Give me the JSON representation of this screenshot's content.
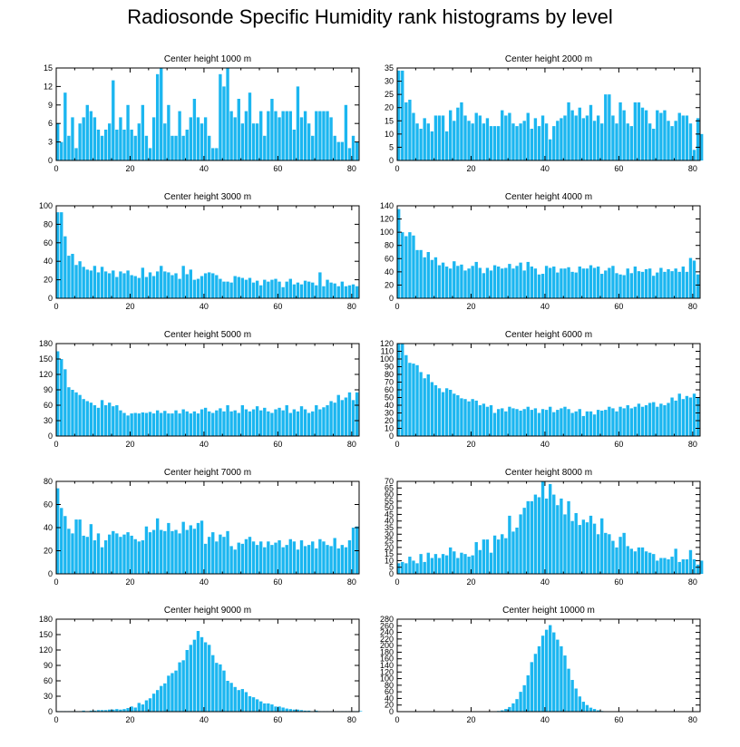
{
  "title": "Radiosonde Specific Humidity rank histograms by level",
  "colors": {
    "bar": "#1bb6f0",
    "axis": "#000000",
    "background": "#ffffff"
  },
  "chart_data": [
    {
      "type": "bar",
      "title": "Center height 1000 m",
      "xlim": [
        0,
        82
      ],
      "ylim": [
        0,
        15
      ],
      "xticks": [
        0,
        20,
        40,
        60,
        80
      ],
      "yticks": [
        0,
        3,
        6,
        9,
        12,
        15
      ],
      "values": [
        6,
        3,
        11,
        4,
        7,
        2,
        6,
        7,
        9,
        8,
        7,
        5,
        4,
        5,
        6,
        13,
        5,
        7,
        5,
        9,
        5,
        4,
        6,
        9,
        4,
        2,
        7,
        14,
        15,
        6,
        9,
        4,
        4,
        8,
        4,
        5,
        7,
        10,
        7,
        6,
        7,
        4,
        2,
        2,
        14,
        12,
        15,
        8,
        7,
        10,
        6,
        8,
        11,
        6,
        6,
        8,
        4,
        8,
        10,
        8,
        7,
        8,
        8,
        8,
        5,
        12,
        7,
        8,
        6,
        4,
        8,
        8,
        8,
        8,
        7,
        4,
        3,
        3,
        9,
        2,
        4,
        3
      ]
    },
    {
      "type": "bar",
      "title": "Center height 2000 m",
      "xlim": [
        0,
        82
      ],
      "ylim": [
        0,
        35
      ],
      "xticks": [
        0,
        20,
        40,
        60,
        80
      ],
      "yticks": [
        0,
        5,
        10,
        15,
        20,
        25,
        30,
        35
      ],
      "values": [
        34,
        34,
        22,
        23,
        18,
        14,
        12,
        16,
        14,
        11,
        17,
        17,
        17,
        11,
        19,
        15,
        20,
        22,
        17,
        15,
        14,
        18,
        17,
        14,
        16,
        13,
        13,
        13,
        19,
        17,
        18,
        14,
        13,
        14,
        15,
        18,
        12,
        16,
        13,
        17,
        14,
        8,
        13,
        15,
        16,
        17,
        22,
        19,
        17,
        20,
        16,
        17,
        21,
        15,
        17,
        14,
        25,
        25,
        17,
        14,
        22,
        19,
        14,
        13,
        22,
        22,
        20,
        19,
        14,
        12,
        19,
        18,
        19,
        15,
        13,
        15,
        18,
        17,
        17,
        14,
        4,
        16,
        10
      ]
    },
    {
      "type": "bar",
      "title": "Center height 3000 m",
      "xlim": [
        0,
        82
      ],
      "ylim": [
        0,
        100
      ],
      "xticks": [
        0,
        20,
        40,
        60,
        80
      ],
      "yticks": [
        0,
        20,
        40,
        60,
        80,
        100
      ],
      "values": [
        93,
        93,
        67,
        46,
        48,
        36,
        40,
        34,
        31,
        30,
        35,
        28,
        34,
        29,
        27,
        30,
        23,
        29,
        27,
        30,
        25,
        24,
        22,
        33,
        23,
        28,
        24,
        29,
        35,
        29,
        28,
        25,
        27,
        21,
        35,
        26,
        31,
        20,
        21,
        24,
        27,
        28,
        27,
        25,
        21,
        18,
        18,
        17,
        24,
        23,
        22,
        20,
        22,
        17,
        19,
        14,
        20,
        18,
        20,
        21,
        18,
        12,
        18,
        21,
        15,
        17,
        15,
        19,
        18,
        17,
        14,
        28,
        13,
        20,
        17,
        16,
        13,
        18,
        13,
        14,
        15,
        13
      ]
    },
    {
      "type": "bar",
      "title": "Center height 4000 m",
      "xlim": [
        0,
        82
      ],
      "ylim": [
        0,
        140
      ],
      "xticks": [
        0,
        20,
        40,
        60,
        80
      ],
      "yticks": [
        0,
        20,
        40,
        60,
        80,
        100,
        120,
        140
      ],
      "values": [
        135,
        100,
        94,
        100,
        95,
        73,
        73,
        62,
        70,
        58,
        62,
        50,
        54,
        48,
        45,
        56,
        49,
        51,
        42,
        45,
        49,
        55,
        46,
        38,
        46,
        42,
        50,
        48,
        45,
        46,
        52,
        45,
        49,
        54,
        42,
        55,
        48,
        45,
        36,
        37,
        49,
        46,
        48,
        39,
        45,
        45,
        47,
        40,
        39,
        48,
        45,
        45,
        50,
        46,
        48,
        37,
        42,
        46,
        49,
        38,
        36,
        35,
        45,
        38,
        48,
        41,
        40,
        44,
        45,
        34,
        39,
        46,
        40,
        44,
        41,
        45,
        40,
        48,
        40,
        61,
        57,
        36
      ]
    },
    {
      "type": "bar",
      "title": "Center height 5000 m",
      "xlim": [
        0,
        82
      ],
      "ylim": [
        0,
        180
      ],
      "xticks": [
        0,
        20,
        40,
        60,
        80
      ],
      "yticks": [
        0,
        30,
        60,
        90,
        120,
        150,
        180
      ],
      "values": [
        165,
        150,
        130,
        95,
        90,
        85,
        80,
        72,
        68,
        65,
        60,
        55,
        70,
        60,
        65,
        58,
        60,
        50,
        45,
        40,
        44,
        45,
        44,
        46,
        45,
        47,
        44,
        50,
        45,
        49,
        44,
        44,
        50,
        44,
        52,
        48,
        44,
        48,
        44,
        52,
        55,
        48,
        45,
        50,
        54,
        48,
        60,
        48,
        50,
        45,
        60,
        52,
        48,
        52,
        58,
        50,
        55,
        48,
        45,
        52,
        55,
        50,
        60,
        45,
        52,
        48,
        58,
        52,
        45,
        48,
        60,
        52,
        56,
        60,
        68,
        65,
        80,
        70,
        75,
        85,
        70,
        85
      ]
    },
    {
      "type": "bar",
      "title": "Center height 6000 m",
      "xlim": [
        0,
        82
      ],
      "ylim": [
        0,
        120
      ],
      "xticks": [
        0,
        20,
        40,
        60,
        80
      ],
      "yticks": [
        0,
        10,
        20,
        30,
        40,
        50,
        60,
        70,
        80,
        90,
        100,
        110,
        120
      ],
      "values": [
        120,
        120,
        105,
        95,
        94,
        92,
        83,
        75,
        80,
        70,
        66,
        62,
        57,
        62,
        60,
        55,
        53,
        49,
        48,
        45,
        48,
        46,
        40,
        42,
        38,
        40,
        30,
        35,
        36,
        32,
        38,
        36,
        35,
        33,
        35,
        38,
        34,
        36,
        30,
        35,
        34,
        38,
        31,
        34,
        36,
        38,
        35,
        30,
        32,
        35,
        26,
        32,
        32,
        28,
        34,
        33,
        34,
        38,
        36,
        32,
        38,
        36,
        40,
        36,
        38,
        42,
        38,
        40,
        43,
        44,
        38,
        42,
        40,
        43,
        50,
        46,
        55,
        48,
        52,
        50,
        55,
        50
      ]
    },
    {
      "type": "bar",
      "title": "Center height 7000 m",
      "xlim": [
        0,
        82
      ],
      "ylim": [
        0,
        80
      ],
      "xticks": [
        0,
        20,
        40,
        60,
        80
      ],
      "yticks": [
        0,
        20,
        40,
        60,
        80
      ],
      "values": [
        74,
        57,
        50,
        39,
        35,
        47,
        47,
        33,
        32,
        43,
        29,
        35,
        23,
        29,
        34,
        37,
        35,
        32,
        34,
        36,
        33,
        30,
        28,
        29,
        41,
        36,
        38,
        48,
        38,
        37,
        44,
        37,
        38,
        35,
        45,
        38,
        42,
        39,
        44,
        46,
        26,
        32,
        36,
        28,
        34,
        32,
        37,
        24,
        21,
        27,
        26,
        30,
        32,
        28,
        25,
        28,
        23,
        28,
        25,
        27,
        29,
        23,
        25,
        30,
        28,
        21,
        29,
        24,
        25,
        28,
        22,
        30,
        28,
        25,
        24,
        31,
        22,
        25,
        23,
        29,
        40,
        41
      ]
    },
    {
      "type": "bar",
      "title": "Center height 8000 m",
      "xlim": [
        0,
        82
      ],
      "ylim": [
        0,
        70
      ],
      "xticks": [
        0,
        20,
        40,
        60,
        80
      ],
      "yticks": [
        0,
        5,
        10,
        15,
        20,
        25,
        30,
        35,
        40,
        45,
        50,
        55,
        60,
        65,
        70
      ],
      "values": [
        8,
        9,
        8,
        13,
        10,
        8,
        15,
        9,
        16,
        12,
        15,
        12,
        15,
        14,
        20,
        17,
        12,
        16,
        15,
        13,
        14,
        24,
        18,
        26,
        26,
        16,
        29,
        26,
        30,
        27,
        44,
        32,
        35,
        45,
        50,
        55,
        55,
        60,
        58,
        70,
        57,
        68,
        60,
        52,
        57,
        45,
        55,
        40,
        46,
        37,
        41,
        39,
        44,
        38,
        30,
        42,
        31,
        30,
        25,
        20,
        28,
        31,
        21,
        19,
        17,
        20,
        20,
        17,
        16,
        15,
        10,
        12,
        12,
        11,
        13,
        19,
        9,
        11,
        11,
        18,
        11,
        7,
        10
      ]
    },
    {
      "type": "bar",
      "title": "Center height 9000 m",
      "xlim": [
        0,
        82
      ],
      "ylim": [
        0,
        180
      ],
      "xticks": [
        0,
        20,
        40,
        60,
        80
      ],
      "yticks": [
        0,
        30,
        60,
        90,
        120,
        150,
        180
      ],
      "values": [
        1,
        1,
        1,
        1,
        1,
        1,
        1,
        2,
        1,
        2,
        2,
        3,
        3,
        3,
        4,
        4,
        5,
        4,
        5,
        7,
        10,
        8,
        17,
        14,
        22,
        26,
        35,
        42,
        50,
        55,
        70,
        75,
        80,
        96,
        100,
        120,
        130,
        140,
        157,
        145,
        135,
        130,
        110,
        95,
        92,
        80,
        60,
        56,
        48,
        42,
        44,
        38,
        30,
        28,
        24,
        20,
        16,
        16,
        14,
        10,
        10,
        8,
        6,
        5,
        4,
        4,
        3,
        2,
        2,
        1,
        2,
        1,
        1,
        1,
        1,
        1,
        1,
        1,
        1,
        1,
        1,
        1,
        1
      ]
    },
    {
      "type": "bar",
      "title": "Center height 10000 m",
      "xlim": [
        0,
        82
      ],
      "ylim": [
        0,
        280
      ],
      "xticks": [
        0,
        20,
        40,
        60,
        80
      ],
      "yticks": [
        0,
        20,
        40,
        60,
        80,
        100,
        120,
        140,
        160,
        180,
        200,
        220,
        240,
        260,
        280
      ],
      "values": [
        0,
        0,
        0,
        0,
        0,
        0,
        0,
        0,
        0,
        0,
        0,
        0,
        0,
        0,
        0,
        0,
        0,
        0,
        0,
        0,
        0,
        0,
        0,
        0,
        0,
        0,
        1,
        2,
        4,
        8,
        14,
        25,
        38,
        60,
        80,
        110,
        150,
        175,
        198,
        230,
        248,
        262,
        240,
        218,
        198,
        170,
        130,
        96,
        70,
        46,
        30,
        20,
        12,
        8,
        4,
        2,
        1,
        1,
        0,
        0,
        0,
        0,
        0,
        0,
        0,
        0,
        0,
        0,
        0,
        0,
        0,
        0,
        0,
        0,
        0,
        0,
        0,
        0,
        0,
        0,
        0,
        0,
        0
      ]
    }
  ]
}
